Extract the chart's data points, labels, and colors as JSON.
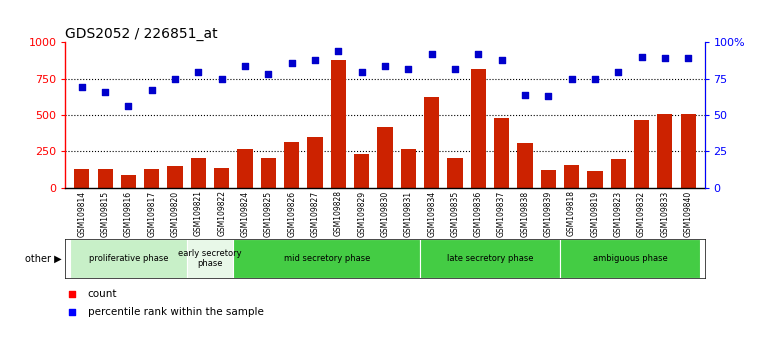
{
  "title": "GDS2052 / 226851_at",
  "samples": [
    "GSM109814",
    "GSM109815",
    "GSM109816",
    "GSM109817",
    "GSM109820",
    "GSM109821",
    "GSM109822",
    "GSM109824",
    "GSM109825",
    "GSM109826",
    "GSM109827",
    "GSM109828",
    "GSM109829",
    "GSM109830",
    "GSM109831",
    "GSM109834",
    "GSM109835",
    "GSM109836",
    "GSM109837",
    "GSM109838",
    "GSM109839",
    "GSM109818",
    "GSM109819",
    "GSM109823",
    "GSM109832",
    "GSM109833",
    "GSM109840"
  ],
  "counts": [
    130,
    125,
    90,
    130,
    150,
    205,
    135,
    265,
    205,
    315,
    350,
    880,
    230,
    415,
    265,
    625,
    205,
    820,
    480,
    305,
    120,
    155,
    115,
    195,
    465,
    505,
    505
  ],
  "percentiles": [
    69,
    66,
    56,
    67,
    75,
    80,
    75,
    84,
    78,
    86,
    88,
    94,
    80,
    84,
    82,
    92,
    82,
    92,
    88,
    64,
    63,
    75,
    75,
    80,
    90,
    89,
    89
  ],
  "phase_data": [
    {
      "label": "proliferative phase",
      "start": 0,
      "end": 5,
      "color": "#c8f0c8"
    },
    {
      "label": "early secretory\nphase",
      "start": 5,
      "end": 7,
      "color": "#e8f8e8"
    },
    {
      "label": "mid secretory phase",
      "start": 7,
      "end": 15,
      "color": "#44cc44"
    },
    {
      "label": "late secretory phase",
      "start": 15,
      "end": 21,
      "color": "#44cc44"
    },
    {
      "label": "ambiguous phase",
      "start": 21,
      "end": 27,
      "color": "#44cc44"
    }
  ],
  "bar_color": "#cc2200",
  "dot_color": "#0000cc",
  "ylim_left": [
    0,
    1000
  ],
  "ylim_right": [
    0,
    100
  ],
  "yticks_left": [
    0,
    250,
    500,
    750,
    1000
  ],
  "yticks_right": [
    0,
    25,
    50,
    75,
    100
  ],
  "yticklabels_right": [
    "0",
    "25",
    "50",
    "75",
    "100%"
  ],
  "grid_values": [
    250,
    500,
    750
  ],
  "background_color": "#ffffff",
  "tick_bg_color": "#d0d0d0"
}
